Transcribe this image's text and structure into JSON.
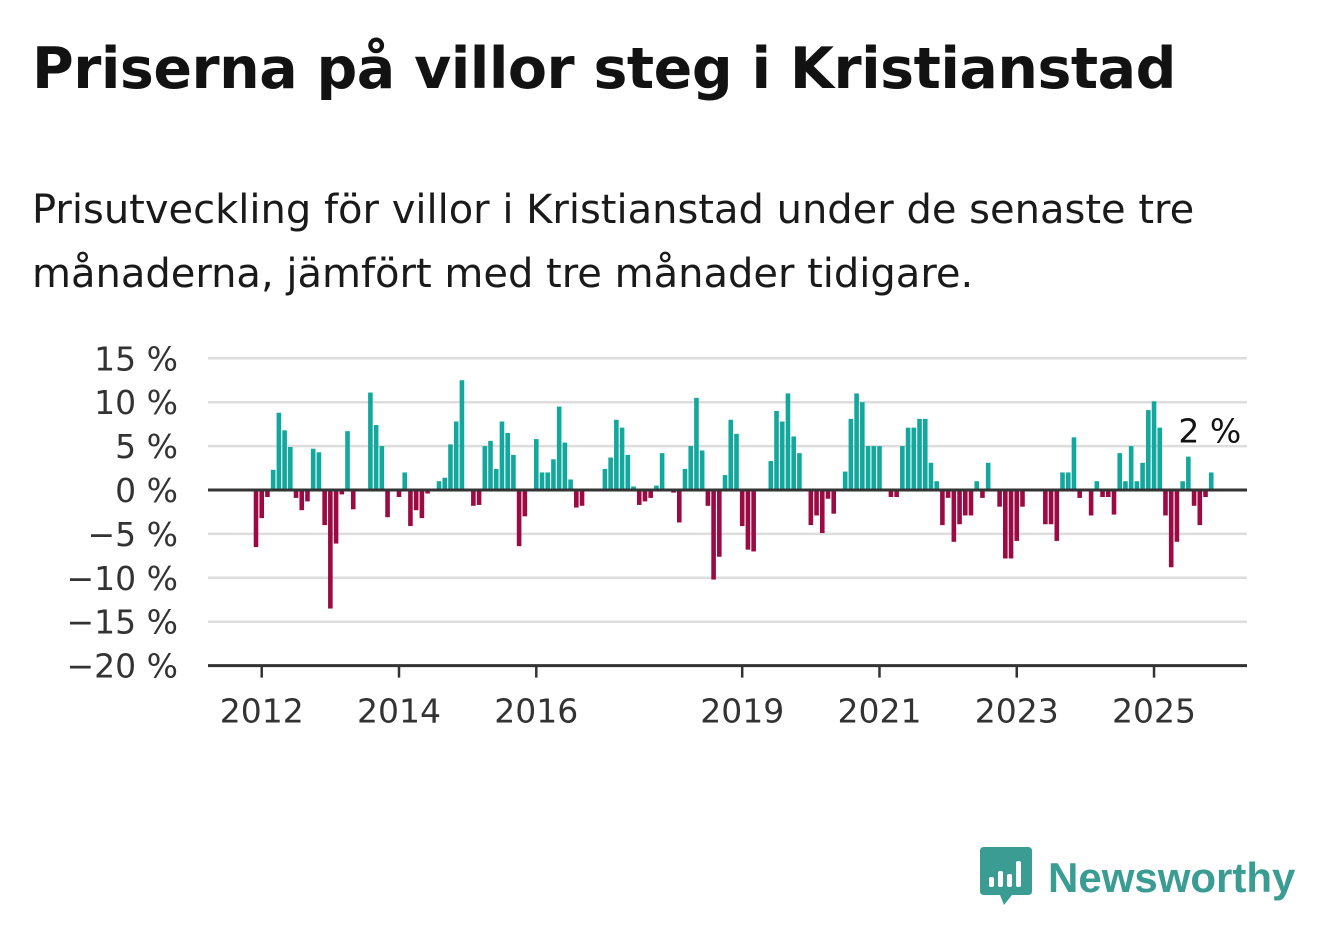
{
  "title": "Priserna på villor steg i Kristianstad",
  "subtitle": "Prisutveckling för villor i Kristianstad under de senaste tre månaderna, jämfört med tre månader tidigare.",
  "brand": {
    "name": "Newsworthy",
    "logo_icon": "newsworthy-bar-chart-icon"
  },
  "colors": {
    "positive": "#13a89e",
    "negative": "#9b0a42",
    "grid": "#dddddd",
    "axis": "#333333",
    "brand": "#3a9c93"
  },
  "chart_data": {
    "type": "bar",
    "title": "Priserna på villor steg i Kristianstad",
    "subtitle": "Prisutveckling för villor i Kristianstad under de senaste tre månaderna, jämfört med tre månader tidigare.",
    "xlabel": "",
    "ylabel": "",
    "ylim": [
      -20,
      15
    ],
    "yticks": [
      15,
      10,
      5,
      0,
      -5,
      -10,
      -15,
      -20
    ],
    "ytick_labels": [
      "15 %",
      "10 %",
      "5 %",
      "0 %",
      "−5 %",
      "−10 %",
      "−15 %",
      "−20 %"
    ],
    "xticks": [
      "2012",
      "2014",
      "2016",
      "2019",
      "2021",
      "2023",
      "2025"
    ],
    "x_start": "2011-12",
    "grid": "horizontal",
    "last_value_label": "2 %",
    "values": [
      -6.5,
      -3.2,
      -0.8,
      2.3,
      8.8,
      6.8,
      4.9,
      -0.9,
      -2.3,
      -1.3,
      4.7,
      4.3,
      -4.0,
      -13.5,
      -6.1,
      -0.5,
      6.7,
      -2.2,
      0,
      0,
      11.1,
      7.4,
      5.0,
      -3.1,
      0,
      -0.8,
      2.0,
      -4.1,
      -2.3,
      -3.2,
      -0.4,
      0,
      1.0,
      1.4,
      5.2,
      7.8,
      12.5,
      0,
      -1.8,
      -1.7,
      5.0,
      5.6,
      2.4,
      7.8,
      6.5,
      4.0,
      -6.4,
      -3.0,
      0,
      5.8,
      2.0,
      2.0,
      3.5,
      9.5,
      5.4,
      1.2,
      -2.0,
      -1.8,
      0,
      0,
      0,
      2.4,
      3.7,
      8.0,
      7.1,
      4.0,
      0.4,
      -1.7,
      -1.3,
      -0.9,
      0.5,
      4.2,
      0,
      -0.3,
      -3.7,
      2.4,
      5.0,
      10.5,
      4.5,
      -1.8,
      -10.2,
      -7.6,
      1.7,
      8.0,
      6.4,
      -4.1,
      -6.8,
      -7.0,
      0,
      0,
      3.3,
      9.0,
      7.8,
      11.0,
      6.1,
      4.2,
      0,
      -4.0,
      -2.9,
      -4.9,
      -1.0,
      -2.7,
      0,
      2.1,
      8.1,
      11.0,
      10.0,
      5.0,
      5.0,
      5.0,
      0,
      -0.8,
      -0.8,
      5.0,
      7.1,
      7.1,
      8.1,
      8.1,
      3.1,
      1.0,
      -4.0,
      -0.9,
      -5.9,
      -3.9,
      -2.9,
      -2.9,
      1.0,
      -0.9,
      3.1,
      0,
      -1.9,
      -7.8,
      -7.8,
      -5.8,
      -1.9,
      0,
      0,
      0,
      -3.9,
      -3.9,
      -5.8,
      2.0,
      2.0,
      6.0,
      -0.9,
      0,
      -2.9,
      1.0,
      -0.8,
      -0.8,
      -2.8,
      4.2,
      1.0,
      5.0,
      1.0,
      3.1,
      9.1,
      10.1,
      7.1,
      -2.9,
      -8.8,
      -5.9,
      1.0,
      3.8,
      -1.8,
      -4.0,
      -0.8,
      2.0
    ]
  }
}
